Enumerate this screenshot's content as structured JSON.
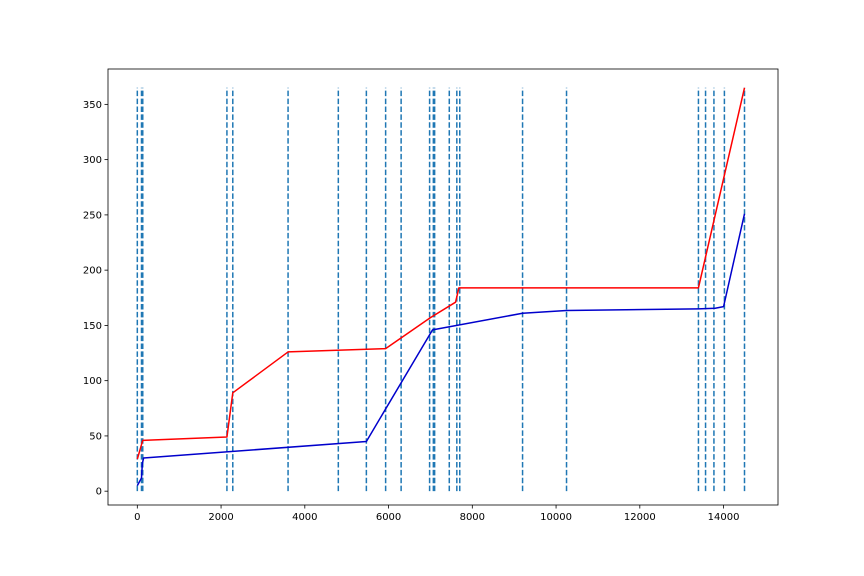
{
  "chart_data": {
    "type": "line",
    "title": "",
    "xlabel": "",
    "ylabel": "",
    "xlim": [
      -700,
      15300
    ],
    "ylim": [
      -12.5,
      382
    ],
    "xticks": [
      0,
      2000,
      4000,
      6000,
      8000,
      10000,
      12000,
      14000
    ],
    "yticks": [
      0,
      50,
      100,
      150,
      200,
      250,
      300,
      350
    ],
    "grid": false,
    "series": [
      {
        "color": "#ff0000",
        "x": [
          0,
          130,
          2140,
          2280,
          3600,
          5930,
          7000,
          7600,
          7680,
          13400,
          14500
        ],
        "y": [
          29,
          46,
          49,
          89,
          126,
          129,
          157,
          171,
          184,
          184,
          365
        ]
      },
      {
        "color": "#0000cc",
        "x": [
          0,
          100,
          120,
          150,
          5470,
          7050,
          9200,
          10250,
          13400,
          13800,
          14000,
          14500
        ],
        "y": [
          5,
          12,
          25,
          30,
          45,
          146,
          161,
          163.5,
          165,
          165.5,
          167,
          251
        ]
      }
    ],
    "vlines": {
      "color": "#1f77b4",
      "style": "dashed",
      "ymin": 0,
      "ymax": 365,
      "x": [
        0,
        100,
        130,
        2140,
        2280,
        3600,
        4800,
        5470,
        5930,
        6300,
        6980,
        7070,
        7100,
        7450,
        7630,
        7700,
        9200,
        10250,
        13400,
        13570,
        13770,
        14020,
        14500
      ]
    }
  }
}
